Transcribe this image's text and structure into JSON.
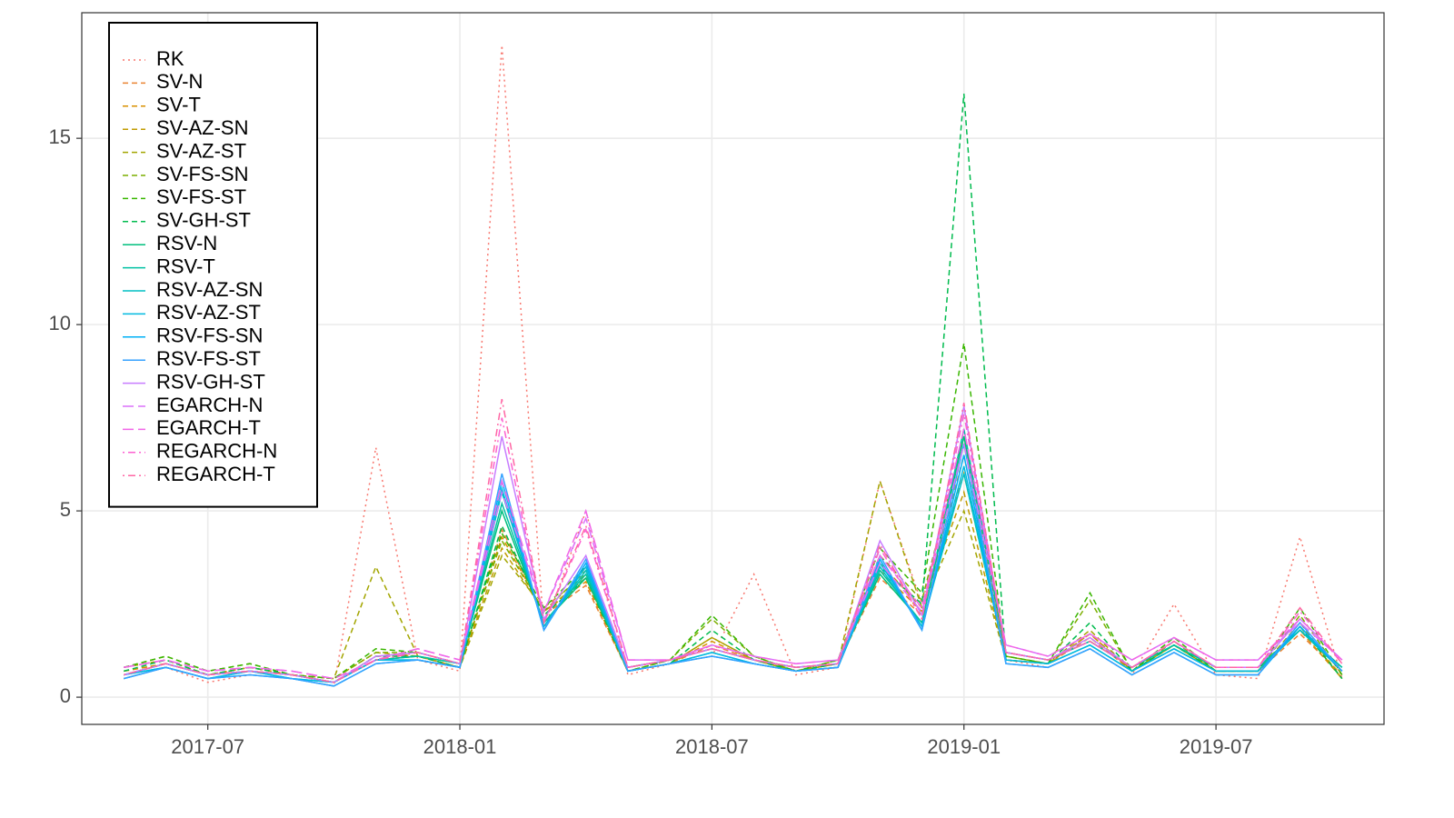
{
  "chart_data": {
    "type": "line",
    "x": [
      "2017-05",
      "2017-06",
      "2017-07",
      "2017-08",
      "2017-09",
      "2017-10",
      "2017-11",
      "2017-12",
      "2018-01",
      "2018-02",
      "2018-03",
      "2018-04",
      "2018-05",
      "2018-06",
      "2018-07",
      "2018-08",
      "2018-09",
      "2018-10",
      "2018-11",
      "2018-12",
      "2019-01",
      "2019-02",
      "2019-03",
      "2019-04",
      "2019-05",
      "2019-06",
      "2019-07",
      "2019-08",
      "2019-09",
      "2019-10"
    ],
    "xlim": [
      "2017-04",
      "2019-11"
    ],
    "xticks": [
      "2017-07",
      "2018-01",
      "2018-07",
      "2019-01",
      "2019-07"
    ],
    "ylim": [
      -0.73,
      18.37
    ],
    "yticks": [
      0,
      5,
      10,
      15
    ],
    "grid": true,
    "legend": "top-left",
    "series": [
      {
        "name": "RK",
        "color": "#F8766D",
        "linestyle": "dotted",
        "values": [
          0.5,
          0.8,
          0.4,
          0.6,
          0.5,
          0.3,
          6.7,
          1.0,
          0.7,
          17.5,
          1.8,
          5.0,
          0.6,
          0.9,
          1.1,
          3.3,
          0.6,
          0.8,
          5.8,
          2.5,
          7.0,
          1.0,
          0.8,
          1.3,
          0.6,
          2.5,
          0.6,
          0.5,
          4.3,
          0.5
        ]
      },
      {
        "name": "SV-N",
        "color": "#EA8331",
        "linestyle": "dashed",
        "values": [
          0.7,
          0.9,
          0.6,
          0.8,
          0.6,
          0.4,
          1.1,
          1.1,
          0.8,
          4.5,
          2.2,
          3.0,
          0.7,
          0.9,
          1.4,
          1.0,
          0.7,
          0.9,
          3.2,
          2.2,
          6.5,
          1.1,
          0.9,
          1.6,
          0.7,
          1.3,
          0.7,
          0.7,
          1.7,
          0.6
        ]
      },
      {
        "name": "SV-T",
        "color": "#D89000",
        "linestyle": "dashed",
        "values": [
          0.7,
          0.9,
          0.6,
          0.8,
          0.6,
          0.4,
          1.0,
          1.1,
          0.8,
          4.3,
          2.3,
          3.1,
          0.7,
          0.9,
          1.5,
          1.0,
          0.7,
          0.9,
          3.4,
          2.3,
          6.0,
          1.0,
          0.9,
          1.7,
          0.7,
          1.4,
          0.7,
          0.7,
          1.8,
          0.5
        ]
      },
      {
        "name": "SV-AZ-SN",
        "color": "#C09B00",
        "linestyle": "dashed",
        "values": [
          0.8,
          1.0,
          0.6,
          0.8,
          0.6,
          0.5,
          1.2,
          1.1,
          0.8,
          4.0,
          2.3,
          3.2,
          0.7,
          0.9,
          1.6,
          1.0,
          0.7,
          0.9,
          3.6,
          2.4,
          5.5,
          1.0,
          0.9,
          1.7,
          0.7,
          1.4,
          0.7,
          0.7,
          1.9,
          0.5
        ]
      },
      {
        "name": "SV-AZ-ST",
        "color": "#A3A500",
        "linestyle": "dashed",
        "values": [
          0.8,
          1.0,
          0.6,
          0.8,
          0.6,
          0.5,
          3.5,
          1.1,
          0.8,
          3.8,
          2.4,
          3.3,
          0.7,
          0.9,
          1.6,
          1.0,
          0.7,
          0.9,
          5.8,
          2.4,
          5.0,
          1.0,
          0.9,
          1.8,
          0.7,
          1.4,
          0.7,
          0.7,
          2.0,
          0.5
        ]
      },
      {
        "name": "SV-FS-SN",
        "color": "#7CAE00",
        "linestyle": "dashed",
        "values": [
          0.8,
          1.1,
          0.7,
          0.9,
          0.6,
          0.5,
          1.2,
          1.2,
          0.9,
          4.2,
          2.3,
          3.4,
          0.7,
          1.0,
          2.1,
          1.1,
          0.7,
          1.0,
          3.8,
          2.6,
          7.0,
          1.1,
          0.9,
          2.6,
          0.7,
          1.5,
          0.7,
          0.7,
          2.2,
          0.6
        ]
      },
      {
        "name": "SV-FS-ST",
        "color": "#39B600",
        "linestyle": "dashed",
        "values": [
          0.8,
          1.1,
          0.7,
          0.9,
          0.6,
          0.5,
          1.3,
          1.2,
          0.9,
          4.4,
          2.4,
          3.5,
          0.7,
          1.0,
          2.2,
          1.1,
          0.7,
          1.0,
          4.0,
          2.8,
          9.5,
          1.1,
          0.9,
          2.8,
          0.7,
          1.6,
          0.7,
          0.7,
          2.4,
          0.6
        ]
      },
      {
        "name": "SV-GH-ST",
        "color": "#00BB4E",
        "linestyle": "dashed",
        "values": [
          0.7,
          1.0,
          0.6,
          0.8,
          0.6,
          0.4,
          1.1,
          1.1,
          0.8,
          4.6,
          2.2,
          3.2,
          0.7,
          0.9,
          1.8,
          1.0,
          0.7,
          0.9,
          3.5,
          2.5,
          16.2,
          1.0,
          0.9,
          2.0,
          0.7,
          1.4,
          0.7,
          0.7,
          1.9,
          0.5
        ]
      },
      {
        "name": "RSV-N",
        "color": "#00BF7D",
        "linestyle": "solid",
        "values": [
          0.6,
          0.9,
          0.6,
          0.7,
          0.6,
          0.4,
          1.0,
          1.1,
          0.9,
          5.0,
          2.0,
          3.2,
          0.8,
          1.0,
          1.3,
          1.0,
          0.8,
          0.9,
          3.3,
          2.0,
          7.0,
          1.2,
          1.0,
          1.5,
          0.8,
          1.4,
          0.8,
          0.8,
          1.8,
          0.8
        ]
      },
      {
        "name": "RSV-T",
        "color": "#00C1A3",
        "linestyle": "solid",
        "values": [
          0.6,
          0.9,
          0.6,
          0.7,
          0.6,
          0.4,
          1.0,
          1.1,
          0.9,
          5.2,
          2.0,
          3.3,
          0.8,
          1.0,
          1.3,
          1.0,
          0.8,
          0.9,
          3.4,
          2.0,
          7.2,
          1.2,
          1.0,
          1.5,
          0.8,
          1.4,
          0.8,
          0.8,
          1.8,
          0.8
        ]
      },
      {
        "name": "RSV-AZ-SN",
        "color": "#00BFC4",
        "linestyle": "solid",
        "values": [
          0.6,
          0.8,
          0.5,
          0.7,
          0.5,
          0.4,
          1.0,
          1.0,
          0.8,
          5.5,
          1.9,
          3.4,
          0.7,
          0.9,
          1.2,
          0.9,
          0.7,
          0.8,
          3.5,
          1.9,
          6.0,
          1.0,
          0.9,
          1.4,
          0.7,
          1.3,
          0.7,
          0.7,
          1.8,
          0.7
        ]
      },
      {
        "name": "RSV-AZ-ST",
        "color": "#00BAE0",
        "linestyle": "solid",
        "values": [
          0.6,
          0.8,
          0.5,
          0.7,
          0.5,
          0.4,
          1.0,
          1.0,
          0.8,
          5.6,
          1.9,
          3.5,
          0.7,
          0.9,
          1.2,
          0.9,
          0.7,
          0.8,
          3.6,
          1.9,
          6.2,
          1.0,
          0.9,
          1.4,
          0.7,
          1.3,
          0.7,
          0.7,
          1.9,
          0.7
        ]
      },
      {
        "name": "RSV-FS-SN",
        "color": "#00B0F6",
        "linestyle": "solid",
        "values": [
          0.5,
          0.8,
          0.5,
          0.6,
          0.5,
          0.3,
          0.9,
          1.0,
          0.8,
          5.8,
          1.8,
          3.6,
          0.7,
          0.9,
          1.1,
          0.9,
          0.7,
          0.8,
          3.7,
          1.8,
          6.5,
          0.9,
          0.8,
          1.3,
          0.6,
          1.2,
          0.6,
          0.6,
          1.9,
          0.7
        ]
      },
      {
        "name": "RSV-FS-ST",
        "color": "#35A2FF",
        "linestyle": "solid",
        "values": [
          0.5,
          0.8,
          0.5,
          0.6,
          0.5,
          0.3,
          0.9,
          1.0,
          0.8,
          6.0,
          1.8,
          3.7,
          0.7,
          0.9,
          1.1,
          0.9,
          0.7,
          0.8,
          3.8,
          1.8,
          6.8,
          0.9,
          0.8,
          1.3,
          0.6,
          1.2,
          0.6,
          0.6,
          2.0,
          0.7
        ]
      },
      {
        "name": "RSV-GH-ST",
        "color": "#C77CFF",
        "linestyle": "solid",
        "values": [
          0.6,
          0.9,
          0.6,
          0.7,
          0.6,
          0.4,
          1.1,
          1.2,
          0.9,
          7.0,
          2.1,
          3.8,
          0.8,
          1.0,
          1.3,
          1.0,
          0.8,
          0.9,
          4.2,
          2.2,
          7.8,
          1.2,
          1.0,
          1.6,
          0.8,
          1.5,
          0.8,
          0.8,
          2.1,
          1.0
        ]
      },
      {
        "name": "EGARCH-N",
        "color": "#DC71FA",
        "linestyle": "longdash",
        "values": [
          0.8,
          1.0,
          0.7,
          0.8,
          0.7,
          0.5,
          1.0,
          1.3,
          1.0,
          5.5,
          2.3,
          4.8,
          1.0,
          1.0,
          1.4,
          1.1,
          0.9,
          1.0,
          3.6,
          2.3,
          6.8,
          1.4,
          1.1,
          1.7,
          1.0,
          1.6,
          1.0,
          1.0,
          2.0,
          1.0
        ]
      },
      {
        "name": "EGARCH-T",
        "color": "#F166E8",
        "linestyle": "longdash",
        "values": [
          0.8,
          1.0,
          0.7,
          0.8,
          0.7,
          0.5,
          1.0,
          1.3,
          1.0,
          5.8,
          2.3,
          5.0,
          1.0,
          1.0,
          1.4,
          1.1,
          0.9,
          1.0,
          3.8,
          2.4,
          7.2,
          1.4,
          1.1,
          1.7,
          1.0,
          1.6,
          1.0,
          1.0,
          2.1,
          1.0
        ]
      },
      {
        "name": "REGARCH-N",
        "color": "#FD61D1",
        "linestyle": "dotdash",
        "values": [
          0.6,
          0.9,
          0.6,
          0.7,
          0.6,
          0.4,
          1.0,
          1.2,
          0.9,
          7.5,
          2.0,
          4.5,
          0.8,
          1.0,
          1.3,
          1.0,
          0.8,
          0.9,
          4.0,
          2.1,
          7.6,
          1.2,
          1.0,
          1.5,
          0.8,
          1.5,
          0.8,
          0.8,
          2.3,
          0.9
        ]
      },
      {
        "name": "REGARCH-T",
        "color": "#FF67A4",
        "linestyle": "dotdash",
        "values": [
          0.6,
          0.9,
          0.6,
          0.7,
          0.6,
          0.4,
          1.0,
          1.2,
          0.9,
          8.0,
          2.0,
          4.6,
          0.8,
          1.0,
          1.3,
          1.0,
          0.8,
          0.9,
          4.1,
          2.1,
          7.9,
          1.2,
          1.0,
          1.5,
          0.8,
          1.5,
          0.8,
          0.8,
          2.4,
          0.9
        ]
      }
    ]
  }
}
